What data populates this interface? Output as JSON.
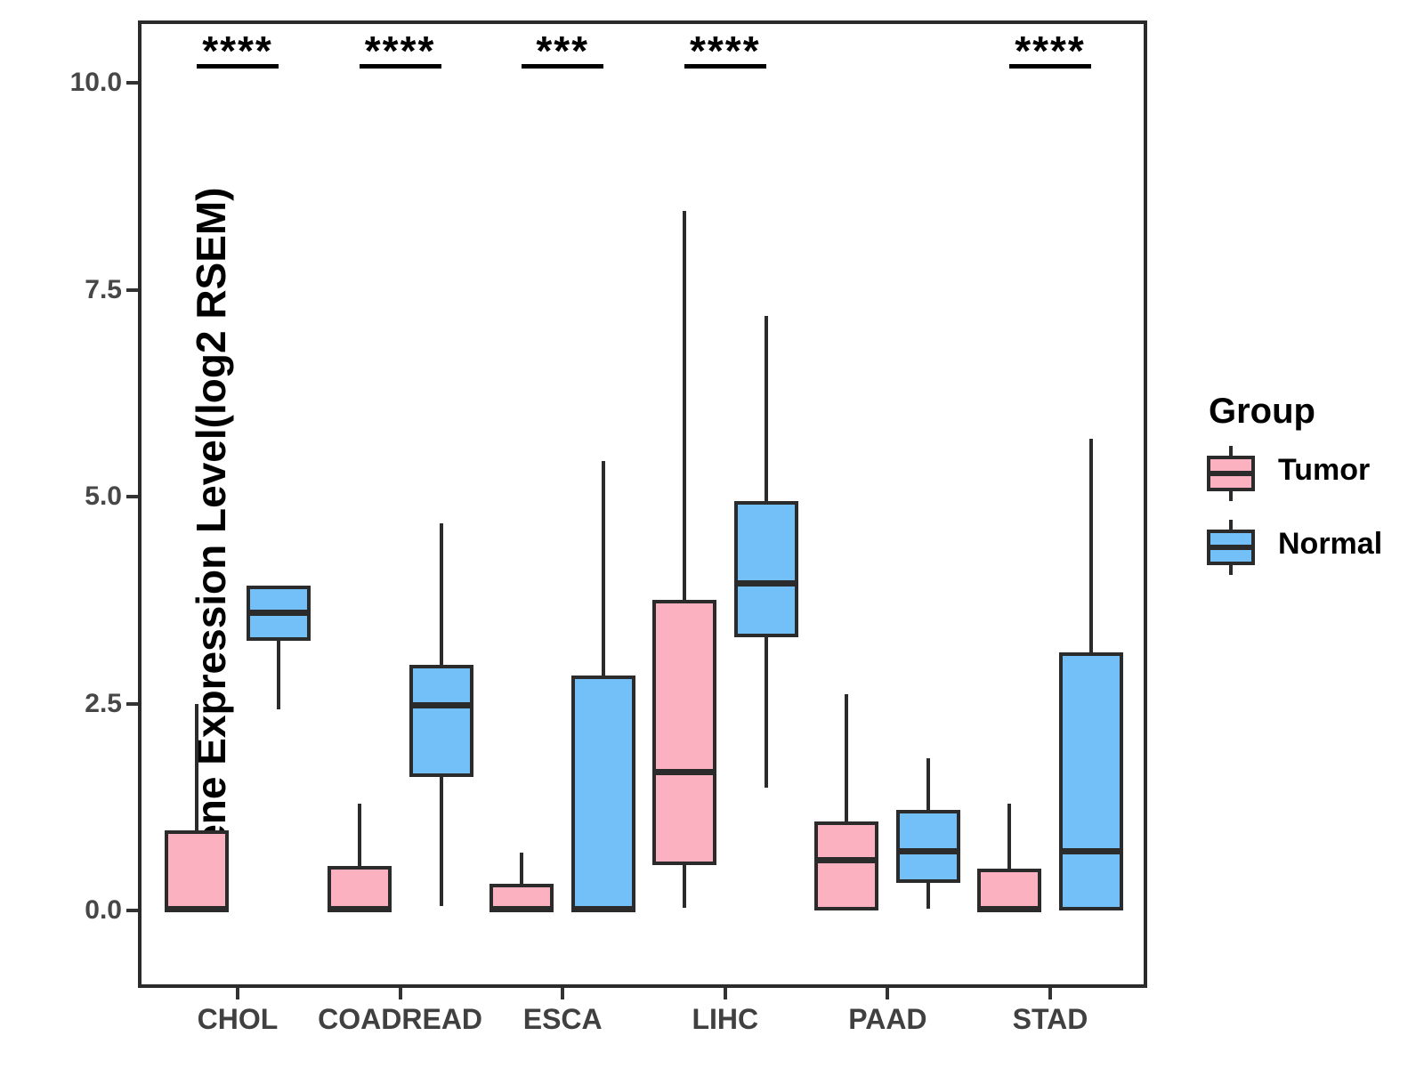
{
  "chart_data": {
    "type": "boxplot",
    "title": "",
    "xlabel": "",
    "ylabel": "Gene Expression Level(log2 RSEM)",
    "categories": [
      "CHOL",
      "COADREAD",
      "ESCA",
      "LIHC",
      "PAAD",
      "STAD"
    ],
    "yticks": [
      0.0,
      2.5,
      5.0,
      7.5,
      10.0
    ],
    "ytick_labels": [
      "0.0",
      "2.5",
      "5.0",
      "7.5",
      "10.0"
    ],
    "ylim": [
      -0.94,
      10.73
    ],
    "grid": false,
    "legend": {
      "title": "Group",
      "position": "right",
      "entries": [
        {
          "label": "Tumor",
          "color": "#FBB1C0"
        },
        {
          "label": "Normal",
          "color": "#73BFF8"
        }
      ]
    },
    "series": [
      {
        "name": "Tumor",
        "color": "#FBB1C0",
        "boxes": [
          {
            "category": "CHOL",
            "lo": 0.0,
            "q1": 0.0,
            "median": 0.02,
            "q3": 0.97,
            "hi": 2.5
          },
          {
            "category": "COADREAD",
            "lo": 0.0,
            "q1": 0.0,
            "median": 0.02,
            "q3": 0.54,
            "hi": 1.29
          },
          {
            "category": "ESCA",
            "lo": 0.0,
            "q1": 0.0,
            "median": 0.02,
            "q3": 0.32,
            "hi": 0.7
          },
          {
            "category": "LIHC",
            "lo": 0.03,
            "q1": 0.55,
            "median": 1.67,
            "q3": 3.75,
            "hi": 8.45
          },
          {
            "category": "PAAD",
            "lo": 0.0,
            "q1": 0.0,
            "median": 0.61,
            "q3": 1.08,
            "hi": 2.61
          },
          {
            "category": "STAD",
            "lo": 0.0,
            "q1": 0.0,
            "median": 0.02,
            "q3": 0.51,
            "hi": 1.29
          }
        ]
      },
      {
        "name": "Normal",
        "color": "#73BFF8",
        "boxes": [
          {
            "category": "CHOL",
            "lo": 2.43,
            "q1": 3.26,
            "median": 3.6,
            "q3": 3.92,
            "hi": 3.92
          },
          {
            "category": "COADREAD",
            "lo": 0.05,
            "q1": 1.61,
            "median": 2.48,
            "q3": 2.97,
            "hi": 4.68
          },
          {
            "category": "ESCA",
            "lo": 0.0,
            "q1": 0.0,
            "median": 0.02,
            "q3": 2.84,
            "hi": 5.43
          },
          {
            "category": "LIHC",
            "lo": 1.48,
            "q1": 3.3,
            "median": 3.95,
            "q3": 4.95,
            "hi": 7.18
          },
          {
            "category": "PAAD",
            "lo": 0.02,
            "q1": 0.33,
            "median": 0.72,
            "q3": 1.21,
            "hi": 1.84
          },
          {
            "category": "STAD",
            "lo": 0.0,
            "q1": 0.0,
            "median": 0.72,
            "q3": 3.12,
            "hi": 5.7
          }
        ]
      }
    ],
    "significance": [
      {
        "category": "CHOL",
        "stars": "****"
      },
      {
        "category": "COADREAD",
        "stars": "****"
      },
      {
        "category": "ESCA",
        "stars": "***"
      },
      {
        "category": "LIHC",
        "stars": "****"
      },
      {
        "category": "PAAD",
        "stars": ""
      },
      {
        "category": "STAD",
        "stars": "****"
      }
    ]
  }
}
